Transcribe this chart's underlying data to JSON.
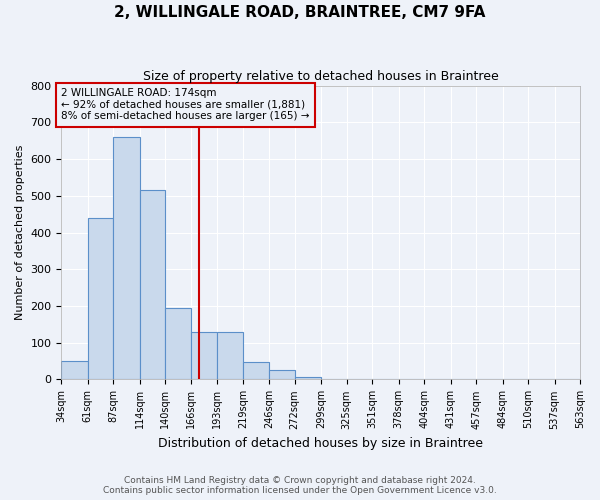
{
  "title": "2, WILLINGALE ROAD, BRAINTREE, CM7 9FA",
  "subtitle": "Size of property relative to detached houses in Braintree",
  "xlabel": "Distribution of detached houses by size in Braintree",
  "ylabel": "Number of detached properties",
  "bin_edges": [
    34,
    61,
    87,
    114,
    140,
    166,
    193,
    219,
    246,
    272,
    299,
    325,
    351,
    378,
    404,
    431,
    457,
    484,
    510,
    537,
    563
  ],
  "bin_counts": [
    50,
    440,
    660,
    515,
    195,
    128,
    128,
    48,
    25,
    8,
    0,
    0,
    0,
    0,
    0,
    0,
    0,
    0,
    0,
    0
  ],
  "property_size": 174,
  "bar_facecolor": "#c9d9ec",
  "bar_edgecolor": "#5b8fc9",
  "vline_color": "#cc0000",
  "annotation_box_edgecolor": "#cc0000",
  "annotation_lines": [
    "2 WILLINGALE ROAD: 174sqm",
    "← 92% of detached houses are smaller (1,881)",
    "8% of semi-detached houses are larger (165) →"
  ],
  "ylim": [
    0,
    800
  ],
  "yticks": [
    0,
    100,
    200,
    300,
    400,
    500,
    600,
    700,
    800
  ],
  "tick_labels": [
    "34sqm",
    "61sqm",
    "87sqm",
    "114sqm",
    "140sqm",
    "166sqm",
    "193sqm",
    "219sqm",
    "246sqm",
    "272sqm",
    "299sqm",
    "325sqm",
    "351sqm",
    "378sqm",
    "404sqm",
    "431sqm",
    "457sqm",
    "484sqm",
    "510sqm",
    "537sqm",
    "563sqm"
  ],
  "footer_line1": "Contains HM Land Registry data © Crown copyright and database right 2024.",
  "footer_line2": "Contains public sector information licensed under the Open Government Licence v3.0.",
  "background_color": "#eef2f9",
  "grid_color": "#ffffff"
}
